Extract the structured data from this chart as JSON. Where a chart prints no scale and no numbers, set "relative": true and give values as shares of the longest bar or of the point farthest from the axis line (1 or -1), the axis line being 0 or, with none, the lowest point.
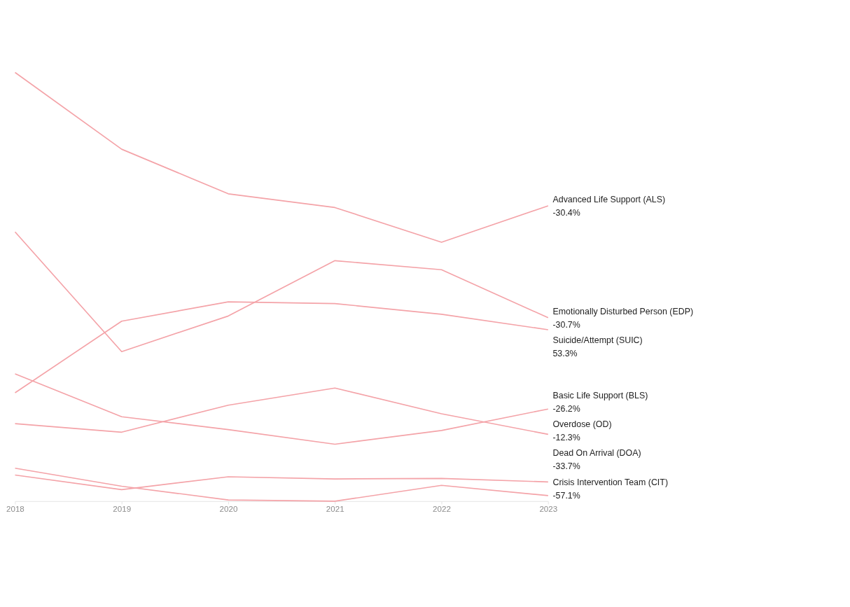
{
  "chart_data": {
    "type": "line",
    "relative": true,
    "marker": "none",
    "line_style": "solid",
    "categories": [
      "2018",
      "2019",
      "2020",
      "2021",
      "2022",
      "2023"
    ],
    "series": [
      {
        "name": "Advanced Life Support (ALS)",
        "color": "#f4a3a8",
        "values": [
          1.0,
          0.821,
          0.717,
          0.685,
          0.604,
          0.689
        ]
      },
      {
        "name": "Emotionally Disturbed Person (EDP)",
        "color": "#f4a3a8",
        "values": [
          0.628,
          0.349,
          0.432,
          0.561,
          0.54,
          0.428
        ]
      },
      {
        "name": "Suicide/Attempt (SUIC)",
        "color": "#f4a3a8",
        "values": [
          0.253,
          0.42,
          0.465,
          0.461,
          0.436,
          0.4
        ]
      },
      {
        "name": "Basic Life Support (BLS)",
        "color": "#f4a3a8",
        "values": [
          0.297,
          0.197,
          0.167,
          0.133,
          0.165,
          0.215
        ]
      },
      {
        "name": "Overdose (OD)",
        "color": "#f4a3a8",
        "values": [
          0.181,
          0.161,
          0.224,
          0.264,
          0.204,
          0.156
        ]
      },
      {
        "name": "Dead On Arrival (DOA)",
        "color": "#f4a3a8",
        "values": [
          0.061,
          0.027,
          0.057,
          0.052,
          0.053,
          0.045
        ]
      },
      {
        "name": "Crisis Intervention Team (CIT)",
        "color": "#f4a3a8",
        "values": [
          0.077,
          0.035,
          0.003,
          0.0,
          0.037,
          0.013
        ]
      }
    ],
    "annotations": [
      "-30.4%",
      "-30.7%",
      "53.3%",
      "-26.2%",
      "-12.3%",
      "-33.7%",
      "-57.1%"
    ]
  }
}
